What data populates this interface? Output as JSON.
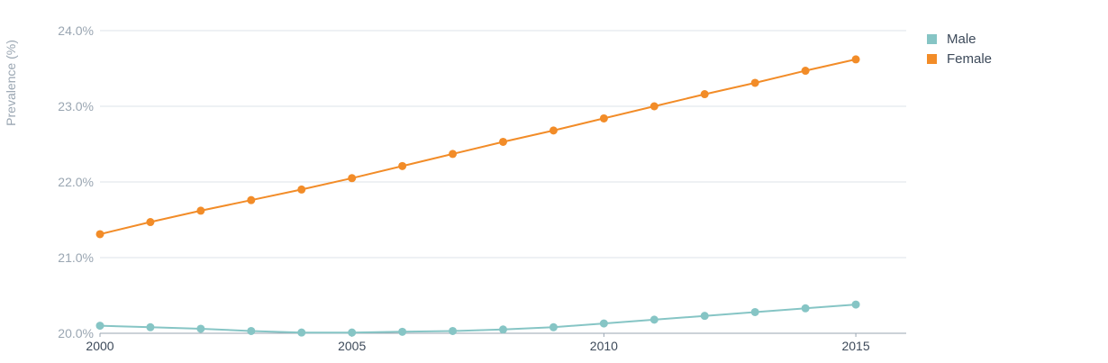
{
  "chart_data": {
    "type": "line",
    "title": "",
    "xlabel": "",
    "ylabel": "Prevalence (%)",
    "xlim": [
      2000,
      2016
    ],
    "ylim": [
      20.0,
      24.0
    ],
    "x_ticks": [
      "2000",
      "2005",
      "2010",
      "2015"
    ],
    "y_ticks": [
      "20.0%",
      "21.0%",
      "22.0%",
      "23.0%",
      "24.0%"
    ],
    "grid": true,
    "legend": "top-right",
    "x": [
      2000,
      2001,
      2002,
      2003,
      2004,
      2005,
      2006,
      2007,
      2008,
      2009,
      2010,
      2011,
      2012,
      2013,
      2014,
      2015
    ],
    "series": [
      {
        "name": "Male",
        "color": "#86c5c5",
        "values": [
          20.1,
          20.08,
          20.06,
          20.03,
          20.01,
          20.01,
          20.02,
          20.03,
          20.05,
          20.08,
          20.13,
          20.18,
          20.23,
          20.28,
          20.33,
          20.38
        ]
      },
      {
        "name": "Female",
        "color": "#f28c28",
        "values": [
          21.31,
          21.47,
          21.62,
          21.76,
          21.9,
          22.05,
          22.21,
          22.37,
          22.53,
          22.68,
          22.84,
          23.0,
          23.16,
          23.31,
          23.47,
          23.62
        ]
      }
    ]
  }
}
